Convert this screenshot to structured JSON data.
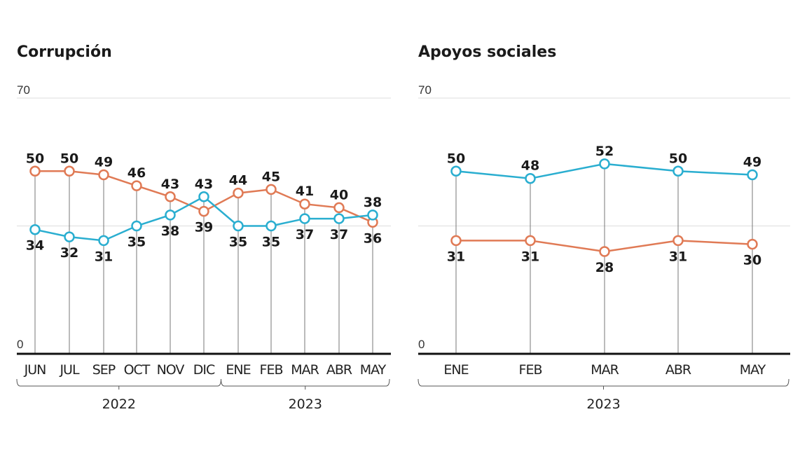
{
  "colors": {
    "orange": "#e07a55",
    "blue": "#2aaed0"
  },
  "chart_data": [
    {
      "type": "line",
      "title": "Corrupción",
      "ylim": [
        0,
        70
      ],
      "yticks": [
        "0",
        "70"
      ],
      "gridline_at": 35,
      "categories": [
        "JUN",
        "JUL",
        "SEP",
        "OCT",
        "NOV",
        "DIC",
        "ENE",
        "FEB",
        "MAR",
        "ABR",
        "MAY"
      ],
      "groups": [
        {
          "label": "2022",
          "span": [
            0,
            5
          ]
        },
        {
          "label": "2023",
          "span": [
            6,
            10
          ]
        }
      ],
      "series": [
        {
          "color": "orange",
          "values": [
            50,
            50,
            49,
            46,
            43,
            39,
            44,
            45,
            41,
            40,
            36
          ]
        },
        {
          "color": "blue",
          "values": [
            34,
            32,
            31,
            35,
            38,
            43,
            35,
            35,
            37,
            37,
            38
          ]
        }
      ]
    },
    {
      "type": "line",
      "title": "Apoyos sociales",
      "ylim": [
        0,
        70
      ],
      "yticks": [
        "0",
        "70"
      ],
      "gridline_at": 35,
      "categories": [
        "ENE",
        "FEB",
        "MAR",
        "ABR",
        "MAY"
      ],
      "groups": [
        {
          "label": "2023",
          "span": [
            0,
            4
          ]
        }
      ],
      "series": [
        {
          "color": "blue",
          "values": [
            50,
            48,
            52,
            50,
            49
          ]
        },
        {
          "color": "orange",
          "values": [
            31,
            31,
            28,
            31,
            30
          ]
        }
      ]
    }
  ]
}
